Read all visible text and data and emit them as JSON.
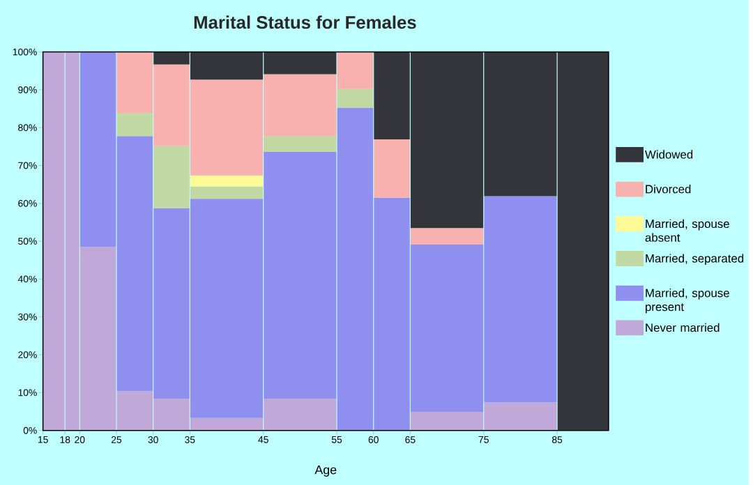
{
  "chart_data": {
    "type": "bar",
    "stacked": true,
    "title": "Marital Status for Females",
    "xlabel": "Age",
    "x": [
      16.5,
      19,
      22.5,
      27.5,
      32.5,
      40,
      50,
      57.5,
      62.5,
      70,
      80,
      88.5
    ],
    "xlim": [
      15,
      92
    ],
    "xticks": [
      15,
      18,
      20,
      25,
      30,
      35,
      45,
      55,
      60,
      65,
      75,
      85
    ],
    "ylim": [
      0,
      100
    ],
    "yticks": [
      {
        "value": 0,
        "label": "0%"
      },
      {
        "value": 10,
        "label": "10%"
      },
      {
        "value": 20,
        "label": "20%"
      },
      {
        "value": 30,
        "label": "30%"
      },
      {
        "value": 40,
        "label": "40%"
      },
      {
        "value": 50,
        "label": "50%"
      },
      {
        "value": 60,
        "label": "60%"
      },
      {
        "value": 70,
        "label": "70%"
      },
      {
        "value": 80,
        "label": "80%"
      },
      {
        "value": 90,
        "label": "90%"
      },
      {
        "value": 100,
        "label": "100%"
      }
    ],
    "legend": "right",
    "grid": "x",
    "series": [
      {
        "name": "Never married",
        "color": "#c0a8d8",
        "values": [
          100,
          100,
          48.5,
          10.4,
          8.4,
          3.3,
          8.4,
          0,
          0,
          4.9,
          7.4,
          0
        ]
      },
      {
        "name": "Married, spouse present",
        "color": "#8f8ff0",
        "values": [
          0,
          0,
          51.5,
          67.4,
          50.3,
          57.9,
          65.2,
          85.3,
          61.5,
          44.2,
          54.5,
          0
        ]
      },
      {
        "name": "Married, separated",
        "color": "#c2d9a4",
        "values": [
          0,
          0,
          0,
          6.1,
          16.4,
          3.3,
          4.2,
          4.9,
          0,
          0,
          0,
          0
        ]
      },
      {
        "name": "Married, spouse absent",
        "color": "#fefa98",
        "values": [
          0,
          0,
          0,
          0,
          0,
          2.9,
          0,
          0,
          0,
          0,
          0,
          0
        ]
      },
      {
        "name": "Divorced",
        "color": "#f9b1b0",
        "values": [
          0,
          0,
          0,
          16.1,
          21.6,
          25.3,
          16.3,
          9.8,
          15.4,
          4.4,
          0,
          0
        ]
      },
      {
        "name": "Widowed",
        "color": "#34353b",
        "values": [
          0,
          0,
          0,
          0,
          3.3,
          7.3,
          5.9,
          0,
          23.1,
          46.5,
          38.1,
          100
        ]
      }
    ]
  }
}
